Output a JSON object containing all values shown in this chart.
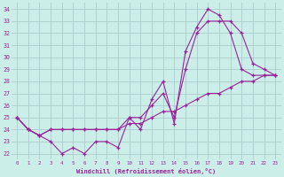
{
  "xlabel": "Windchill (Refroidissement éolien,°C)",
  "xlim": [
    -0.5,
    23.5
  ],
  "ylim": [
    21.5,
    34.5
  ],
  "yticks": [
    22,
    23,
    24,
    25,
    26,
    27,
    28,
    29,
    30,
    31,
    32,
    33,
    34
  ],
  "xticks": [
    0,
    1,
    2,
    3,
    4,
    5,
    6,
    7,
    8,
    9,
    10,
    11,
    12,
    13,
    14,
    15,
    16,
    17,
    18,
    19,
    20,
    21,
    22,
    23
  ],
  "bg_color": "#cceee8",
  "grid_color": "#aacccc",
  "line_color": "#992299",
  "line1_x": [
    0,
    1,
    2,
    3,
    4,
    5,
    6,
    7,
    8,
    9,
    10,
    11,
    12,
    13,
    14,
    15,
    16,
    17,
    18,
    19,
    20,
    21,
    22,
    23
  ],
  "line1_y": [
    25,
    24,
    23.5,
    23,
    22,
    22.5,
    22,
    23,
    23,
    22.5,
    25,
    24,
    26.5,
    28,
    24.5,
    30.5,
    32.5,
    34,
    33.5,
    32,
    29,
    28.5,
    28.5,
    28.5
  ],
  "line2_x": [
    0,
    1,
    2,
    3,
    4,
    5,
    6,
    7,
    8,
    9,
    10,
    11,
    12,
    13,
    14,
    15,
    16,
    17,
    18,
    19,
    20,
    21,
    22,
    23
  ],
  "line2_y": [
    25,
    24,
    23.5,
    24,
    24,
    24,
    24,
    24,
    24,
    24,
    25,
    25,
    26,
    27,
    25,
    29,
    32,
    33,
    33,
    33,
    32,
    29.5,
    29,
    28.5
  ],
  "line3_x": [
    0,
    1,
    2,
    3,
    4,
    5,
    6,
    7,
    8,
    9,
    10,
    11,
    12,
    13,
    14,
    15,
    16,
    17,
    18,
    19,
    20,
    21,
    22,
    23
  ],
  "line3_y": [
    25,
    24,
    23.5,
    24,
    24,
    24,
    24,
    24,
    24,
    24,
    24.5,
    24.5,
    25,
    25.5,
    25.5,
    26,
    26.5,
    27,
    27,
    27.5,
    28,
    28,
    28.5,
    28.5
  ]
}
